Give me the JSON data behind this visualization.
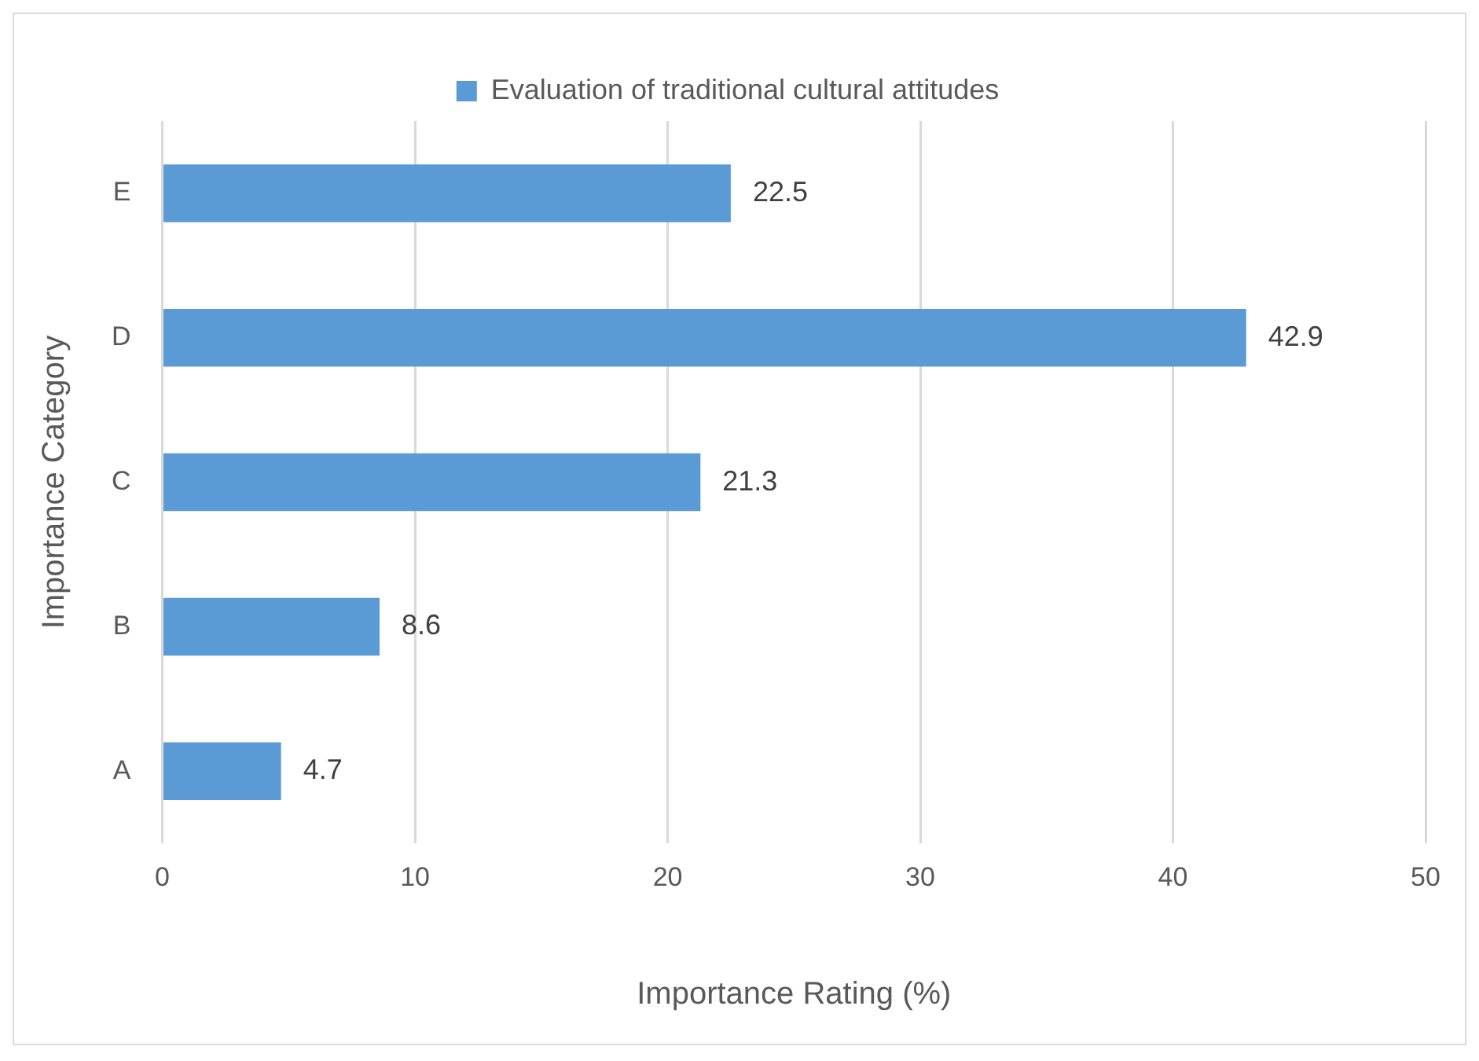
{
  "chart_data": {
    "type": "bar",
    "orientation": "horizontal",
    "xlabel": "Importance Rating (%)",
    "ylabel": "Importance Category",
    "categories": [
      "E",
      "D",
      "C",
      "B",
      "A"
    ],
    "series": [
      {
        "name": "Evaluation of traditional cultural attitudes",
        "color": "#5b9bd5",
        "values": [
          22.5,
          42.9,
          21.3,
          8.6,
          4.7
        ]
      }
    ],
    "xlim": [
      0,
      50
    ],
    "xticks": [
      0,
      10,
      20,
      30,
      40,
      50
    ],
    "grid": "x",
    "legend": "top",
    "data_labels": true
  }
}
